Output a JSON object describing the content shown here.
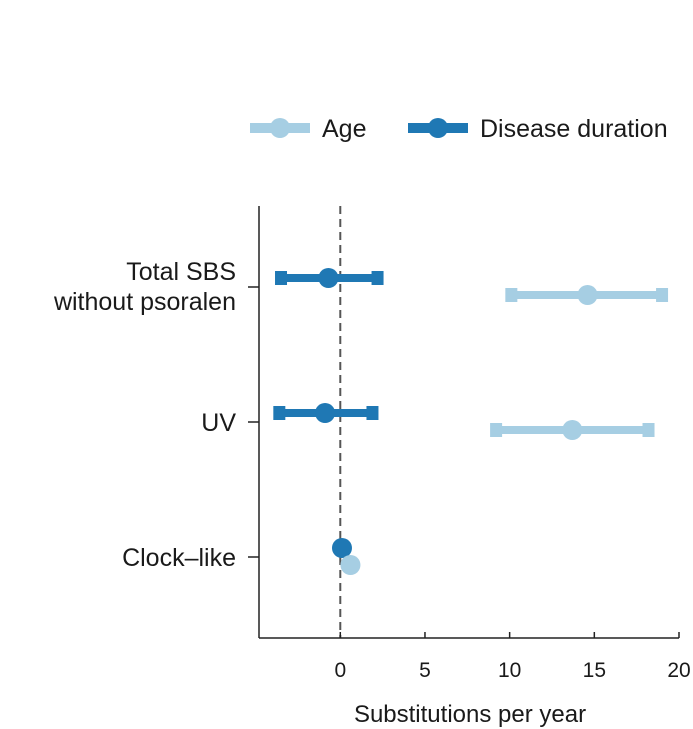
{
  "chart_data": {
    "type": "forest",
    "xlabel": "Substitutions per year",
    "xlim": [
      -4.8,
      20
    ],
    "xticks": [
      0,
      5,
      10,
      15,
      20
    ],
    "reference_line": 0,
    "categories": [
      {
        "lines": [
          "Total SBS",
          "without psoralen"
        ]
      },
      {
        "lines": [
          "UV"
        ]
      },
      {
        "lines": [
          "Clock–like"
        ]
      }
    ],
    "series": [
      {
        "name": "Disease duration",
        "color": "#1f78b4",
        "points": [
          {
            "estimate": -0.7,
            "lower": -3.5,
            "upper": 2.2
          },
          {
            "estimate": -0.9,
            "lower": -3.6,
            "upper": 1.9
          },
          {
            "estimate": 0.1,
            "lower": 0.1,
            "upper": 0.1
          }
        ]
      },
      {
        "name": "Age",
        "color": "#a6cee3",
        "points": [
          {
            "estimate": 14.6,
            "lower": 10.1,
            "upper": 19.0
          },
          {
            "estimate": 13.7,
            "lower": 9.2,
            "upper": 18.2
          },
          {
            "estimate": 0.6,
            "lower": 0.6,
            "upper": 0.6
          }
        ]
      }
    ],
    "legend": {
      "position": "top-right",
      "order": [
        "Age",
        "Disease duration"
      ]
    },
    "grid": false
  }
}
